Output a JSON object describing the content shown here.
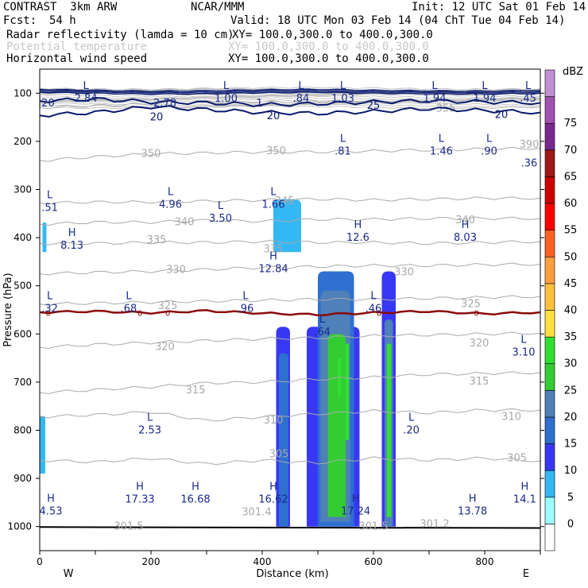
{
  "header": {
    "model": "CONTRAST  3km ARW",
    "center": "NCAR/MMM",
    "init": "Init: 12 UTC Sat 01 Feb 14",
    "fcst_label": "Fcst:",
    "fcst_value": "54 h",
    "valid": "Valid: 18 UTC Mon 03 Feb 14 (04 ChT Tue 04 Feb 14)",
    "fields": [
      {
        "name": "Radar reflectivity (lamda = 10 cm)",
        "xy": "XY= 100.0,300.0 to 400.0,300.0",
        "faded": false
      },
      {
        "name": "Potential temperature",
        "xy": "XY= 100.0,300.0 to 400.0,300.0",
        "faded": true
      },
      {
        "name": "Horizontal wind speed",
        "xy": "XY= 100.0,300.0 to 400.0,300.0",
        "faded": false
      }
    ]
  },
  "chart_data": {
    "type": "cross-section",
    "xlabel": "Distance (km)",
    "ylabel": "Pressure (hPa)",
    "xlim": [
      0,
      900
    ],
    "ylim": [
      1050,
      50
    ],
    "xticks": [
      0,
      200,
      400,
      600,
      800
    ],
    "yticks": [
      100,
      200,
      300,
      400,
      500,
      600,
      700,
      800,
      900,
      1000
    ],
    "left_end": "W",
    "right_end": "E",
    "colorbar": {
      "unit": "dBZ",
      "levels": [
        0,
        5,
        10,
        15,
        20,
        25,
        30,
        35,
        40,
        45,
        50,
        55,
        60,
        65,
        70,
        75
      ],
      "colors": [
        "#ffffff",
        "#9cfcfc",
        "#34b8f4",
        "#3838f4",
        "#2f6fd0",
        "#4f80b8",
        "#33cc33",
        "#30e030",
        "#ffe040",
        "#ffc040",
        "#ffa040",
        "#ff6020",
        "#ff0000",
        "#cc0000",
        "#a01818",
        "#7a2890",
        "#a050b0",
        "#c090d0"
      ]
    },
    "theta_contours": {
      "color": "#aaaaaa",
      "lines": [
        {
          "label": "305",
          "p": [
            862,
            866,
            858,
            870,
            862,
            868,
            858,
            862,
            858,
            864
          ]
        },
        {
          "label": "310",
          "p": [
            772,
            768,
            762,
            780,
            772,
            766,
            760,
            764,
            758,
            758
          ]
        },
        {
          "label": "315",
          "p": [
            722,
            716,
            710,
            702,
            700,
            694,
            690,
            684,
            682,
            680
          ]
        },
        {
          "label": "320",
          "p": [
            628,
            622,
            618,
            614,
            610,
            608,
            604,
            602,
            600,
            598
          ]
        },
        {
          "label": "325",
          "p": [
            538,
            536,
            534,
            532,
            530,
            528,
            528,
            526,
            524,
            522
          ]
        },
        {
          "label": "330",
          "p": [
            475,
            472,
            470,
            466,
            462,
            460,
            458,
            458,
            456,
            455
          ]
        },
        {
          "label": "335",
          "p": [
            412,
            412,
            410,
            410,
            408,
            410,
            410,
            412,
            410,
            408
          ]
        },
        {
          "label": "340",
          "p": [
            372,
            368,
            368,
            364,
            366,
            362,
            362,
            360,
            360,
            360
          ]
        },
        {
          "label": "345",
          "p": [
            328,
            326,
            326,
            324,
            322,
            320,
            322,
            320,
            318,
            318
          ]
        },
        {
          "label": "350",
          "p": [
            240,
            232,
            226,
            224,
            222,
            222,
            220,
            218,
            216,
            214
          ]
        },
        {
          "label": "355",
          "p": [
            130,
            126,
            122,
            118,
            118,
            116,
            116,
            114,
            114,
            112
          ]
        }
      ]
    },
    "zero_contour": {
      "label": "0",
      "p": [
        555,
        553,
        556,
        552,
        557,
        560,
        556,
        553,
        558,
        555
      ]
    },
    "jet_contours": [
      {
        "label": "20",
        "p": [
          146,
          140,
          128,
          134,
          140,
          142,
          138,
          132,
          136,
          140
        ]
      },
      {
        "label": "25",
        "p": [
          116,
          112,
          118,
          120,
          124,
          122,
          118,
          116,
          118,
          120
        ]
      }
    ],
    "contour_labels": {
      "wind": [
        "20",
        "20",
        "20",
        "25"
      ],
      "zero": [
        "0",
        "0",
        "0",
        "0",
        "0"
      ],
      "theta": [
        "355",
        "350",
        "350",
        "345",
        "340",
        "340",
        "335",
        "335",
        "330",
        "330",
        "325",
        "325",
        "320",
        "320",
        "315",
        "315",
        "310",
        "310",
        "305",
        "305",
        "301.4",
        "301.5",
        "301.5",
        "301.2",
        "390"
      ]
    },
    "reflectivity_cells": [
      {
        "x0": 425,
        "x1": 450,
        "ptop": 585,
        "pbot": 1000,
        "dbz": 10
      },
      {
        "x0": 430,
        "x1": 447,
        "ptop": 640,
        "pbot": 1000,
        "dbz": 15
      },
      {
        "x0": 480,
        "x1": 575,
        "ptop": 585,
        "pbot": 1000,
        "dbz": 10
      },
      {
        "x0": 500,
        "x1": 565,
        "ptop": 470,
        "pbot": 1000,
        "dbz": 15
      },
      {
        "x0": 505,
        "x1": 558,
        "ptop": 510,
        "pbot": 990,
        "dbz": 20
      },
      {
        "x0": 518,
        "x1": 550,
        "ptop": 600,
        "pbot": 980,
        "dbz": 25
      },
      {
        "x0": 615,
        "x1": 640,
        "ptop": 470,
        "pbot": 1000,
        "dbz": 10
      },
      {
        "x0": 620,
        "x1": 635,
        "ptop": 570,
        "pbot": 1000,
        "dbz": 20
      },
      {
        "x0": 624,
        "x1": 632,
        "ptop": 620,
        "pbot": 980,
        "dbz": 30
      },
      {
        "x0": 550,
        "x1": 556,
        "ptop": 620,
        "pbot": 820,
        "dbz": 30
      },
      {
        "x0": 536,
        "x1": 542,
        "ptop": 650,
        "pbot": 730,
        "dbz": 30
      },
      {
        "x0": 420,
        "x1": 470,
        "ptop": 320,
        "pbot": 430,
        "dbz": 5
      },
      {
        "x0": 0,
        "x1": 10,
        "ptop": 770,
        "pbot": 890,
        "dbz": 5
      },
      {
        "x0": 5,
        "x1": 12,
        "ptop": 368,
        "pbot": 430,
        "dbz": 5
      }
    ],
    "hl_markers": [
      {
        "type": "L",
        "value": "2.84",
        "x": 83,
        "p": 98
      },
      {
        "type": "",
        "value": ".20",
        "x": 12,
        "p": 108
      },
      {
        "type": "",
        "value": "2.78",
        "x": 225,
        "p": 108
      },
      {
        "type": "L",
        "value": "1.00",
        "x": 335,
        "p": 98
      },
      {
        "type": "",
        "value": "1",
        "x": 395,
        "p": 108
      },
      {
        "type": "L",
        "value": ".84",
        "x": 470,
        "p": 98
      },
      {
        "type": "L",
        "value": "1.03",
        "x": 545,
        "p": 98
      },
      {
        "type": "L",
        "value": "1.94",
        "x": 710,
        "p": 98
      },
      {
        "type": "L",
        "value": "1.94",
        "x": 800,
        "p": 98
      },
      {
        "type": "L",
        "value": ".45",
        "x": 878,
        "p": 98
      },
      {
        "type": "L",
        "value": ".81",
        "x": 545,
        "p": 208
      },
      {
        "type": "L",
        "value": "1.46",
        "x": 722,
        "p": 208
      },
      {
        "type": "L",
        "value": ".90",
        "x": 808,
        "p": 208
      },
      {
        "type": "",
        "value": ".36",
        "x": 880,
        "p": 232
      },
      {
        "type": "L",
        "value": ".51",
        "x": 18,
        "p": 325
      },
      {
        "type": "L",
        "value": "4.96",
        "x": 235,
        "p": 318
      },
      {
        "type": "L",
        "value": "3.50",
        "x": 325,
        "p": 347
      },
      {
        "type": "L",
        "value": "1.66",
        "x": 420,
        "p": 318
      },
      {
        "type": "H",
        "value": "12.6",
        "x": 572,
        "p": 387
      },
      {
        "type": "H",
        "value": "8.03",
        "x": 765,
        "p": 387
      },
      {
        "type": "H",
        "value": "8.13",
        "x": 58,
        "p": 403
      },
      {
        "type": "H",
        "value": "12.84",
        "x": 420,
        "p": 452
      },
      {
        "type": "L",
        "value": ".32",
        "x": 18,
        "p": 534
      },
      {
        "type": "L",
        "value": ".68",
        "x": 160,
        "p": 534
      },
      {
        "type": "L",
        "value": ".96",
        "x": 370,
        "p": 534
      },
      {
        "type": "L",
        "value": ".46",
        "x": 600,
        "p": 534
      },
      {
        "type": "L",
        "value": ".64",
        "x": 508,
        "p": 583
      },
      {
        "type": "L",
        "value": "3.10",
        "x": 870,
        "p": 625
      },
      {
        "type": "L",
        "value": "2.53",
        "x": 198,
        "p": 787
      },
      {
        "type": "L",
        "value": ".20",
        "x": 668,
        "p": 787
      },
      {
        "type": "H",
        "value": "17.33",
        "x": 180,
        "p": 930
      },
      {
        "type": "H",
        "value": "16.68",
        "x": 280,
        "p": 930
      },
      {
        "type": "H",
        "value": "16.62",
        "x": 420,
        "p": 930
      },
      {
        "type": "H",
        "value": "17.24",
        "x": 568,
        "p": 955
      },
      {
        "type": "H",
        "value": "13.78",
        "x": 778,
        "p": 955
      },
      {
        "type": "H",
        "value": "14.1",
        "x": 872,
        "p": 930
      },
      {
        "type": "H",
        "value": "4.53",
        "x": 20,
        "p": 955
      }
    ]
  }
}
